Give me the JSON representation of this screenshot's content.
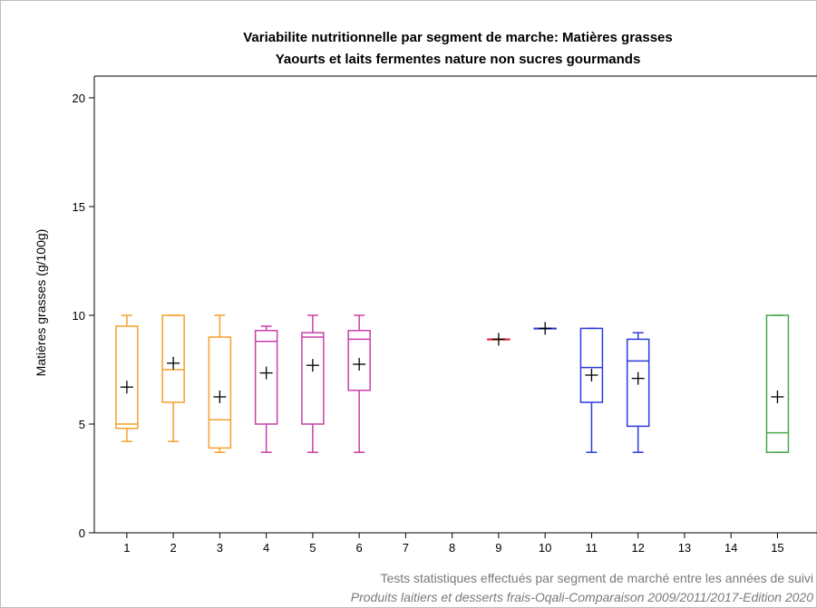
{
  "chart_data": {
    "type": "box",
    "title": "Variabilite nutritionnelle par segment de marche: Matières grasses",
    "subtitle": "Yaourts et laits fermentes nature non sucres gourmands",
    "xlabel": "",
    "ylabel": "Matières grasses (g/100g)",
    "ylim": [
      0,
      21
    ],
    "xlim": [
      0.3,
      15.85
    ],
    "yticks": [
      0,
      5,
      10,
      15,
      20
    ],
    "categories": [
      "1",
      "2",
      "3",
      "4",
      "5",
      "6",
      "7",
      "8",
      "9",
      "10",
      "11",
      "12",
      "13",
      "14",
      "15"
    ],
    "grid": false,
    "colors": {
      "orange": "#f5a02c",
      "magenta": "#c83fa8",
      "red": "#e0202a",
      "blue": "#2b3bd8",
      "green": "#4aa64a"
    },
    "boxes": [
      {
        "category": "1",
        "color": "orange",
        "min": 4.2,
        "q1": 4.8,
        "median": 5.0,
        "q3": 9.5,
        "max": 10.0,
        "mean": 6.7
      },
      {
        "category": "2",
        "color": "orange",
        "min": 4.2,
        "q1": 6.0,
        "median": 7.5,
        "q3": 10.0,
        "max": 10.0,
        "mean": 7.8
      },
      {
        "category": "3",
        "color": "orange",
        "min": 3.7,
        "q1": 3.9,
        "median": 5.2,
        "q3": 9.0,
        "max": 10.0,
        "mean": 6.25
      },
      {
        "category": "4",
        "color": "magenta",
        "min": 3.7,
        "q1": 5.0,
        "median": 8.8,
        "q3": 9.3,
        "max": 9.5,
        "mean": 7.35
      },
      {
        "category": "5",
        "color": "magenta",
        "min": 3.7,
        "q1": 5.0,
        "median": 9.0,
        "q3": 9.2,
        "max": 10.0,
        "mean": 7.7
      },
      {
        "category": "6",
        "color": "magenta",
        "min": 3.7,
        "q1": 6.55,
        "median": 8.9,
        "q3": 9.3,
        "max": 10.0,
        "mean": 7.75
      },
      {
        "category": "9",
        "color": "red",
        "min": 8.9,
        "q1": 8.9,
        "median": 8.9,
        "q3": 8.9,
        "max": 8.9,
        "mean": 8.9
      },
      {
        "category": "10",
        "color": "blue",
        "min": 9.4,
        "q1": 9.4,
        "median": 9.4,
        "q3": 9.4,
        "max": 9.4,
        "mean": 9.4
      },
      {
        "category": "11",
        "color": "blue",
        "min": 3.7,
        "q1": 6.0,
        "median": 7.6,
        "q3": 9.4,
        "max": 9.4,
        "mean": 7.25
      },
      {
        "category": "12",
        "color": "blue",
        "min": 3.7,
        "q1": 4.9,
        "median": 7.9,
        "q3": 8.9,
        "max": 9.2,
        "mean": 7.1
      },
      {
        "category": "15",
        "color": "green",
        "min": 3.7,
        "q1": 3.7,
        "median": 4.6,
        "q3": 10.0,
        "max": 10.0,
        "mean": 6.25
      }
    ],
    "footnotes": [
      "Tests statistiques effectués par segment de marché entre les années de suivi",
      "Produits laitiers et desserts frais-Oqali-Comparaison 2009/2011/2017-Edition 2020"
    ]
  }
}
